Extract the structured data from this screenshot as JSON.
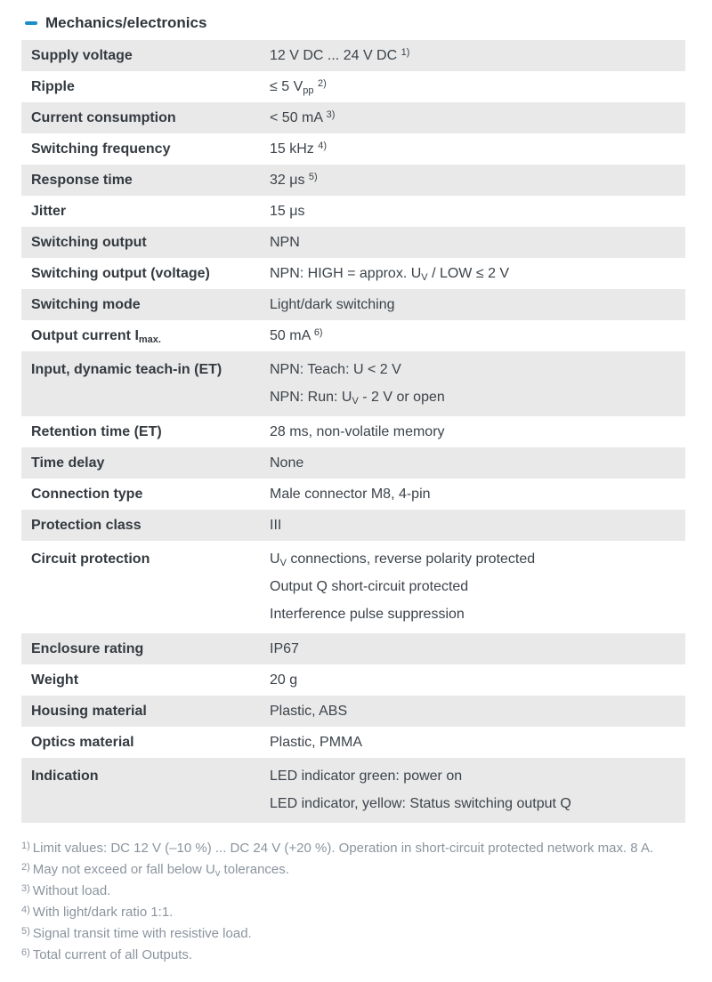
{
  "section": {
    "title": "Mechanics/electronics",
    "accent_color": "#1b8dca"
  },
  "colors": {
    "row_alt_bg": "#e9e9e9",
    "label_text": "#343a40",
    "value_text": "#3c434a",
    "footnote_text": "#8b949e"
  },
  "table": {
    "rows": [
      {
        "label": [
          [
            "t",
            "Supply voltage"
          ]
        ],
        "values": [
          [
            [
              "t",
              "12 V DC ... 24 V DC "
            ],
            [
              "sup",
              "1)"
            ]
          ]
        ]
      },
      {
        "label": [
          [
            "t",
            "Ripple"
          ]
        ],
        "values": [
          [
            [
              "t",
              "≤ 5 V"
            ],
            [
              "sub",
              "pp"
            ],
            [
              "t",
              " "
            ],
            [
              "sup",
              "2)"
            ]
          ]
        ]
      },
      {
        "label": [
          [
            "t",
            "Current consumption"
          ]
        ],
        "values": [
          [
            [
              "t",
              "< 50 mA "
            ],
            [
              "sup",
              "3)"
            ]
          ]
        ]
      },
      {
        "label": [
          [
            "t",
            "Switching frequency"
          ]
        ],
        "values": [
          [
            [
              "t",
              "15 kHz "
            ],
            [
              "sup",
              "4)"
            ]
          ]
        ]
      },
      {
        "label": [
          [
            "t",
            "Response time"
          ]
        ],
        "values": [
          [
            [
              "t",
              "32 μs "
            ],
            [
              "sup",
              "5)"
            ]
          ]
        ]
      },
      {
        "label": [
          [
            "t",
            "Jitter"
          ]
        ],
        "values": [
          [
            [
              "t",
              "15 μs"
            ]
          ]
        ]
      },
      {
        "label": [
          [
            "t",
            "Switching output"
          ]
        ],
        "values": [
          [
            [
              "t",
              "NPN"
            ]
          ]
        ]
      },
      {
        "label": [
          [
            "t",
            "Switching output (voltage)"
          ]
        ],
        "values": [
          [
            [
              "t",
              "NPN: HIGH = approx. U"
            ],
            [
              "sub",
              "V"
            ],
            [
              "t",
              " / LOW ≤ 2 V"
            ]
          ]
        ]
      },
      {
        "label": [
          [
            "t",
            "Switching mode"
          ]
        ],
        "values": [
          [
            [
              "t",
              "Light/dark switching"
            ]
          ]
        ]
      },
      {
        "label": [
          [
            "t",
            "Output current I"
          ],
          [
            "sub",
            "max."
          ]
        ],
        "values": [
          [
            [
              "t",
              "50 mA "
            ],
            [
              "sup",
              "6)"
            ]
          ]
        ]
      },
      {
        "label": [
          [
            "t",
            "Input, dynamic teach-in (ET)"
          ]
        ],
        "values": [
          [
            [
              "t",
              "NPN: Teach: U < 2 V"
            ]
          ],
          [
            [
              "t",
              "NPN: Run: U"
            ],
            [
              "sub",
              "V"
            ],
            [
              "t",
              " - 2 V or open"
            ]
          ]
        ]
      },
      {
        "label": [
          [
            "t",
            "Retention time (ET)"
          ]
        ],
        "values": [
          [
            [
              "t",
              "28 ms, non-volatile memory"
            ]
          ]
        ]
      },
      {
        "label": [
          [
            "t",
            "Time delay"
          ]
        ],
        "values": [
          [
            [
              "t",
              "None"
            ]
          ]
        ]
      },
      {
        "label": [
          [
            "t",
            "Connection type"
          ]
        ],
        "values": [
          [
            [
              "t",
              "Male connector M8, 4-pin"
            ]
          ]
        ]
      },
      {
        "label": [
          [
            "t",
            "Protection class"
          ]
        ],
        "values": [
          [
            [
              "t",
              "III"
            ]
          ]
        ]
      },
      {
        "label": [
          [
            "t",
            "Circuit protection"
          ]
        ],
        "values": [
          [
            [
              "t",
              "U"
            ],
            [
              "sub",
              "V"
            ],
            [
              "t",
              " connections, reverse polarity protected"
            ]
          ],
          [
            [
              "t",
              "Output Q short-circuit protected"
            ]
          ],
          [
            [
              "t",
              "Interference pulse suppression"
            ]
          ]
        ]
      },
      {
        "label": [
          [
            "t",
            "Enclosure rating"
          ]
        ],
        "values": [
          [
            [
              "t",
              "IP67"
            ]
          ]
        ]
      },
      {
        "label": [
          [
            "t",
            "Weight"
          ]
        ],
        "values": [
          [
            [
              "t",
              "20 g"
            ]
          ]
        ]
      },
      {
        "label": [
          [
            "t",
            "Housing material"
          ]
        ],
        "values": [
          [
            [
              "t",
              "Plastic, ABS"
            ]
          ]
        ]
      },
      {
        "label": [
          [
            "t",
            "Optics material"
          ]
        ],
        "values": [
          [
            [
              "t",
              "Plastic, PMMA"
            ]
          ]
        ]
      },
      {
        "label": [
          [
            "t",
            "Indication"
          ]
        ],
        "values": [
          [
            [
              "t",
              "LED indicator green: power on"
            ]
          ],
          [
            [
              "t",
              "LED indicator, yellow: Status switching output Q"
            ]
          ]
        ]
      }
    ]
  },
  "footnotes": [
    {
      "marker": "1)",
      "segs": [
        [
          "t",
          "Limit values: DC 12 V (–10 %) ... DC 24 V (+20 %). Operation in short-circuit protected network max. 8 A."
        ]
      ]
    },
    {
      "marker": "2)",
      "segs": [
        [
          "t",
          "May not exceed or fall below U"
        ],
        [
          "sub",
          "v"
        ],
        [
          "t",
          " tolerances."
        ]
      ]
    },
    {
      "marker": "3)",
      "segs": [
        [
          "t",
          "Without load."
        ]
      ]
    },
    {
      "marker": "4)",
      "segs": [
        [
          "t",
          "With light/dark ratio 1:1."
        ]
      ]
    },
    {
      "marker": "5)",
      "segs": [
        [
          "t",
          "Signal transit time with resistive load."
        ]
      ]
    },
    {
      "marker": "6)",
      "segs": [
        [
          "t",
          "Total current of all Outputs."
        ]
      ]
    }
  ]
}
